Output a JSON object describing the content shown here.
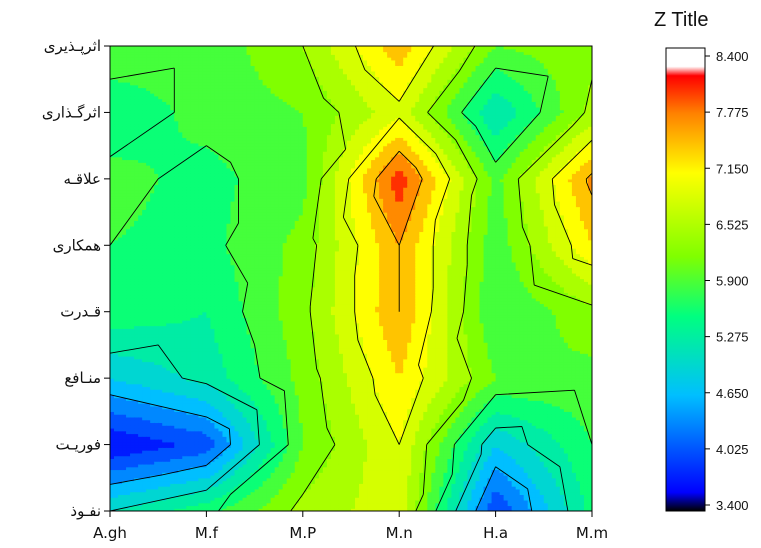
{
  "chart_data": {
    "type": "heatmap",
    "subtype": "filled-contour",
    "title": "",
    "xlabel": "",
    "ylabel": "",
    "categories_x": [
      "A.gh",
      "M.f",
      "M.P",
      "M.n",
      "H.a",
      "M.m"
    ],
    "categories_y": [
      "نفـوذ",
      "فوریـت",
      "منـافع",
      "قـدرت",
      "همکاری",
      "علاقـه",
      "اثرگـذاری",
      "اثرپـذیری"
    ],
    "z": [
      [
        5.1,
        5.6,
        6.4,
        6.8,
        3.9,
        5.5
      ],
      [
        3.6,
        4.0,
        6.0,
        6.9,
        4.8,
        5.7
      ],
      [
        4.8,
        5.2,
        6.1,
        7.2,
        6.0,
        5.9
      ],
      [
        5.6,
        5.4,
        6.2,
        7.5,
        5.7,
        6.2
      ],
      [
        5.7,
        5.6,
        6.1,
        7.5,
        5.8,
        7.2
      ],
      [
        5.8,
        5.6,
        5.9,
        8.0,
        5.9,
        7.6
      ],
      [
        5.5,
        5.8,
        6.0,
        6.8,
        5.1,
        6.4
      ],
      [
        5.9,
        5.8,
        6.3,
        7.4,
        6.0,
        6.2
      ]
    ],
    "colorbar": {
      "title": "Z Title",
      "min": 3.4,
      "max": 8.4,
      "ticks": [
        "8.400",
        "7.775",
        "7.150",
        "6.525",
        "5.900",
        "5.275",
        "4.650",
        "4.025",
        "3.400"
      ],
      "levels": [
        3.4,
        3.6,
        3.9,
        4.2,
        4.5,
        4.8,
        5.1,
        5.4,
        5.7,
        6.0,
        6.3,
        6.6,
        6.9,
        7.2,
        7.5,
        7.8,
        8.1,
        8.4
      ]
    },
    "colors": {
      "colormap": [
        "#000000",
        "#0000ff",
        "#00bfff",
        "#00ff80",
        "#80ff00",
        "#ffff00",
        "#ff8000",
        "#ff0000",
        "#ffffff"
      ],
      "contour_line": "#000000"
    }
  }
}
